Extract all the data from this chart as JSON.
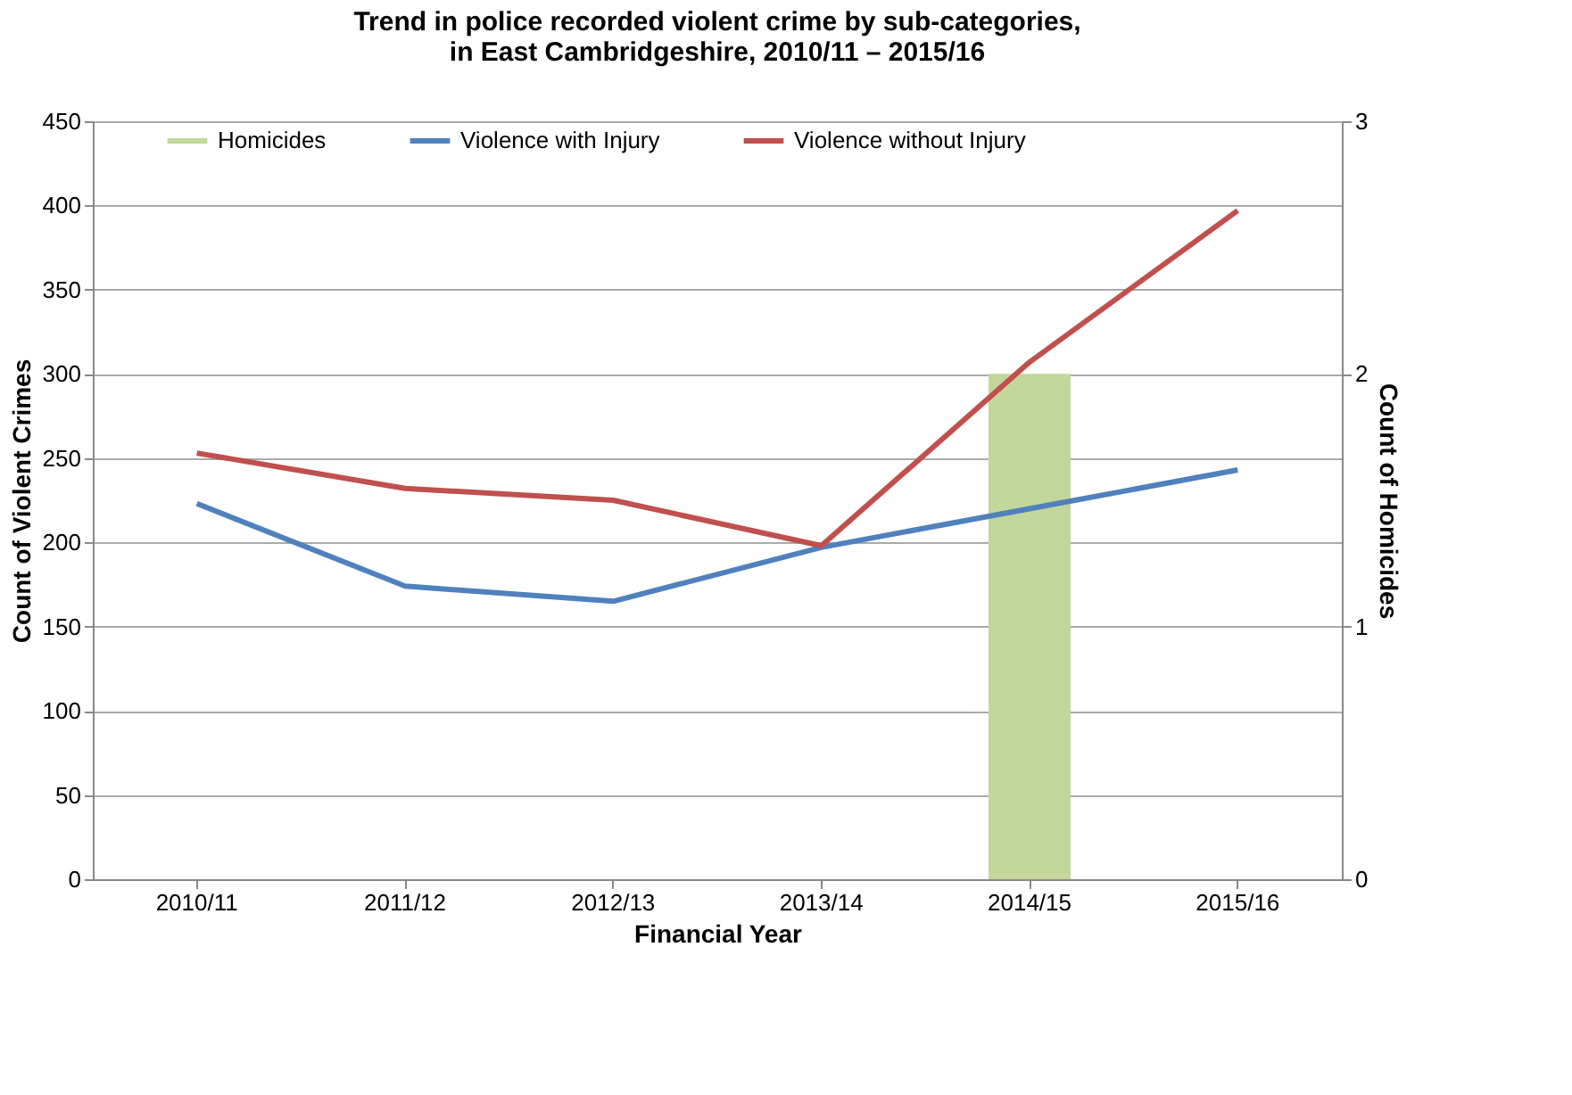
{
  "chart_data": {
    "type": "line",
    "title": "Trend in police recorded violent crime by sub-categories, in East Cambridgeshire, 2010/11 – 2015/16",
    "xlabel": "Financial Year",
    "ylabel": "Count of Violent Crimes",
    "y2label": "Count of Homicides",
    "categories": [
      "2010/11",
      "2011/12",
      "2012/13",
      "2013/14",
      "2014/15",
      "2015/16"
    ],
    "series": [
      {
        "name": "Homicides",
        "type": "bar",
        "axis": "y2",
        "color": "#c3d69b",
        "values": [
          null,
          null,
          null,
          null,
          2,
          null
        ]
      },
      {
        "name": "Violence with Injury",
        "color": "#4f81bd",
        "values": [
          223,
          174,
          165,
          197,
          220,
          243
        ]
      },
      {
        "name": "Violence without Injury",
        "color": "#c0504d",
        "values": [
          253,
          232,
          225,
          198,
          307,
          397
        ]
      }
    ],
    "ylim": [
      0,
      450
    ],
    "yticks": [
      0,
      50,
      100,
      150,
      200,
      250,
      300,
      350,
      400,
      450
    ],
    "y2lim": [
      0,
      3
    ],
    "y2ticks": [
      0,
      1,
      2,
      3
    ],
    "grid": "y",
    "legend": "top",
    "marker": "none",
    "line_style": "solid"
  }
}
